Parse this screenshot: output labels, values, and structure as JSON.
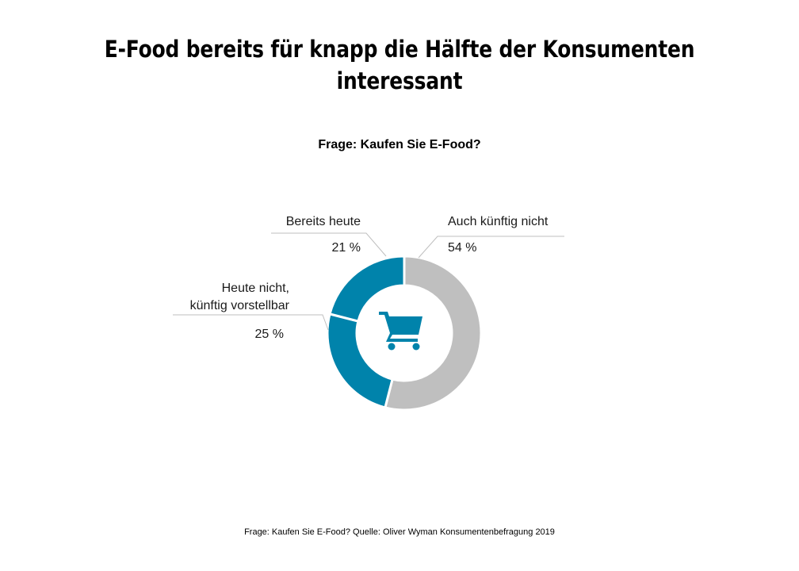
{
  "title_lines": [
    "E-Food bereits für knapp die Hälfte der Konsumenten",
    "interessant"
  ],
  "subtitle": "Frage: Kaufen Sie E-Food?",
  "source": "Frage: Kaufen Sie E-Food? Quelle: Oliver Wyman Konsumentenbefragung  2019",
  "center_icon": "shopping-cart-icon",
  "colors": {
    "gray": "#BFBFBF",
    "blue": "#0083AB",
    "leader": "#BFBFBF"
  },
  "chart_data": {
    "type": "pie",
    "variant": "donut",
    "start_angle_deg": 0,
    "direction": "clockwise",
    "slices": [
      {
        "label": "Auch künftig nicht",
        "value": 54,
        "value_label": "54 %",
        "color": "#BFBFBF"
      },
      {
        "label": "Heute nicht, künftig vorstellbar",
        "label_lines": [
          "Heute nicht,",
          "künftig vorstellbar"
        ],
        "value": 25,
        "value_label": "25 %",
        "color": "#0083AB"
      },
      {
        "label": "Bereits heute",
        "value": 21,
        "value_label": "21 %",
        "color": "#0083AB"
      }
    ]
  }
}
